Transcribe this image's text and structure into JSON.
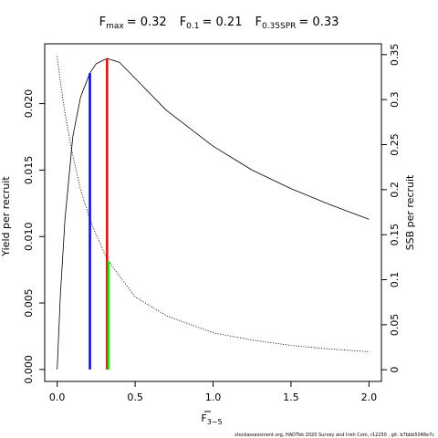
{
  "chart_data": {
    "type": "line",
    "title_items": [
      {
        "symbol": "F",
        "subscript": "max",
        "text": "= 0.32"
      },
      {
        "symbol": "F",
        "subscript": "0.1",
        "text": "= 0.21"
      },
      {
        "symbol": "F",
        "subscript": "0.35SPR",
        "text": "= 0.33"
      }
    ],
    "xlabel": "F",
    "xlabel_subscript": "3−5",
    "ylabel": "Yield per recruit",
    "y2label": "SSB per recruit",
    "footer": "stockassessment.org, HADTbk  2020  Survey  and  Irish  Com, r12250 , git: b7bbb5048e7c",
    "x": [
      0,
      0.02,
      0.05,
      0.1,
      0.15,
      0.21,
      0.25,
      0.32,
      0.4,
      0.5,
      0.7,
      1.0,
      1.25,
      1.5,
      1.75,
      2.0
    ],
    "series": [
      {
        "name": "Yield per recruit",
        "color": "#000000",
        "dash": "solid",
        "values": [
          0,
          0.0055,
          0.0113,
          0.0175,
          0.0205,
          0.0223,
          0.023,
          0.0234,
          0.0231,
          0.0219,
          0.0195,
          0.0168,
          0.015,
          0.0136,
          0.0124,
          0.0113
        ]
      },
      {
        "name": "SSB per recruit",
        "color": "#000000",
        "dash": "dotted",
        "axis": "y2",
        "values": [
          0.348,
          0.32,
          0.285,
          0.238,
          0.2,
          0.167,
          0.15,
          0.123,
          0.104,
          0.081,
          0.06,
          0.041,
          0.033,
          0.027,
          0.023,
          0.02
        ]
      }
    ],
    "reference_lines": [
      {
        "x": 0.21,
        "y": 0.0223,
        "color": "#0000ff"
      },
      {
        "x": 0.32,
        "y": 0.0234,
        "color": "#ff0000"
      },
      {
        "x": 0.33,
        "y": 0.121,
        "color": "#00ff00",
        "axis": "y2"
      }
    ],
    "xlim": [
      -0.08,
      2.08
    ],
    "xticks": [
      {
        "value": 0,
        "label": "0.0"
      },
      {
        "value": 0.5,
        "label": "0.5"
      },
      {
        "value": 1,
        "label": "1.0"
      },
      {
        "value": 1.5,
        "label": "1.5"
      },
      {
        "value": 2,
        "label": "2.0"
      }
    ],
    "ylim": [
      -0.0009,
      0.0245
    ],
    "yticks": [
      {
        "value": 0,
        "label": "0.000"
      },
      {
        "value": 0.005,
        "label": "0.005"
      },
      {
        "value": 0.01,
        "label": "0.010"
      },
      {
        "value": 0.015,
        "label": "0.015"
      },
      {
        "value": 0.02,
        "label": "0.020"
      }
    ],
    "y2lim": [
      -0.013,
      0.362
    ],
    "y2ticks": [
      0,
      0.05,
      0.1,
      0.15,
      0.2,
      0.25,
      0.3,
      0.35
    ]
  }
}
